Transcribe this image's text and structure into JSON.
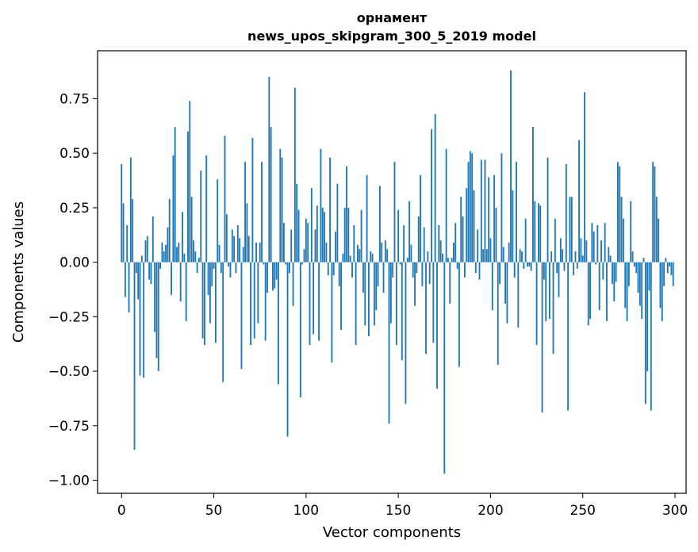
{
  "chart_data": {
    "type": "bar",
    "title": "орнамент",
    "subtitle": "news_upos_skipgram_300_5_2019 model",
    "xlabel": "Vector components",
    "ylabel": "Components values",
    "xlim": [
      -13,
      306
    ],
    "ylim": [
      -1.06,
      0.97
    ],
    "xticks": [
      0,
      50,
      100,
      150,
      200,
      250,
      300
    ],
    "yticks": [
      -1.0,
      -0.75,
      -0.5,
      -0.25,
      0.0,
      0.25,
      0.5,
      0.75
    ],
    "ytick_labels": [
      "−1.00",
      "−0.75",
      "−0.50",
      "−0.25",
      "0.00",
      "0.25",
      "0.50",
      "0.75"
    ],
    "grid": false,
    "bar_color": "#1f77b4",
    "x": "indices 0..299",
    "values": [
      0.45,
      0.27,
      -0.16,
      0.17,
      -0.23,
      0.48,
      0.29,
      -0.86,
      -0.05,
      -0.17,
      -0.52,
      0.03,
      -0.53,
      0.1,
      0.12,
      -0.08,
      -0.1,
      0.21,
      -0.32,
      -0.44,
      -0.5,
      -0.03,
      0.09,
      0.05,
      0.08,
      0.16,
      0.29,
      -0.15,
      0.49,
      0.62,
      0.07,
      0.09,
      -0.18,
      0.23,
      0.04,
      -0.27,
      0.6,
      0.74,
      0.3,
      0.1,
      0.05,
      -0.05,
      0.02,
      0.42,
      -0.35,
      -0.38,
      0.49,
      -0.15,
      -0.28,
      -0.11,
      -0.03,
      -0.37,
      0.38,
      0.08,
      -0.05,
      -0.55,
      0.58,
      0.22,
      -0.02,
      -0.07,
      0.15,
      0.12,
      -0.05,
      0.17,
      0.11,
      -0.49,
      0.07,
      0.46,
      0.27,
      0.12,
      -0.38,
      0.57,
      -0.35,
      0.09,
      -0.28,
      0.09,
      0.46,
      -0.01,
      -0.36,
      -0.14,
      0.85,
      0.62,
      -0.13,
      -0.12,
      -0.08,
      -0.56,
      0.52,
      0.48,
      0.18,
      -0.01,
      -0.8,
      -0.05,
      0.15,
      -0.2,
      0.8,
      0.36,
      0.24,
      -0.62,
      -0.01,
      0.06,
      0.2,
      0.18,
      -0.38,
      0.34,
      -0.33,
      0.15,
      0.26,
      -0.36,
      0.52,
      0.25,
      0.23,
      0.09,
      -0.06,
      0.48,
      -0.46,
      -0.06,
      0.14,
      0.36,
      -0.11,
      -0.31,
      0.04,
      0.25,
      0.44,
      0.25,
      0.03,
      -0.07,
      0.17,
      -0.38,
      0.08,
      0.06,
      0.24,
      -0.14,
      -0.29,
      0.4,
      -0.34,
      0.05,
      0.04,
      -0.29,
      -0.22,
      -0.11,
      0.35,
      0.09,
      -0.14,
      0.1,
      0.06,
      -0.74,
      -0.28,
      -0.07,
      0.46,
      -0.38,
      0.24,
      -0.01,
      -0.45,
      0.17,
      -0.65,
      0.02,
      0.28,
      0.08,
      -0.07,
      -0.2,
      -0.05,
      0.21,
      0.4,
      -0.11,
      0.16,
      -0.42,
      0.05,
      -0.1,
      0.61,
      -0.37,
      0.68,
      -0.58,
      0.17,
      0.1,
      0.04,
      -0.97,
      0.52,
      0.02,
      -0.19,
      0.02,
      0.09,
      0.18,
      -0.03,
      -0.48,
      0.3,
      0.21,
      -0.07,
      0.34,
      0.46,
      0.51,
      0.5,
      0.33,
      -0.05,
      0.15,
      -0.08,
      0.47,
      0.06,
      0.47,
      0.06,
      0.39,
      0.11,
      -0.22,
      0.4,
      0.25,
      -0.47,
      -0.1,
      0.5,
      0.07,
      -0.19,
      -0.28,
      0.09,
      0.88,
      0.33,
      -0.07,
      0.46,
      -0.3,
      0.06,
      0.05,
      -0.03,
      0.2,
      -0.02,
      -0.02,
      -0.04,
      0.62,
      0.28,
      -0.38,
      0.27,
      0.26,
      -0.69,
      -0.08,
      -0.27,
      0.48,
      -0.26,
      0.05,
      -0.42,
      0.2,
      -0.05,
      -0.16,
      0.11,
      0.06,
      -0.04,
      0.45,
      -0.68,
      0.3,
      0.3,
      -0.06,
      0.05,
      -0.03,
      0.56,
      0.11,
      0.03,
      0.78,
      0.1,
      -0.29,
      -0.26,
      0.18,
      0.14,
      -0.01,
      0.17,
      -0.22,
      0.1,
      -0.08,
      0.18,
      -0.27,
      0.07,
      0.03,
      -0.1,
      -0.18,
      -0.09,
      0.46,
      0.44,
      0.3,
      0.2,
      -0.21,
      -0.27,
      -0.11,
      0.28,
      0.05,
      -0.02,
      -0.05,
      -0.14,
      -0.2,
      -0.26,
      0.02,
      -0.65,
      -0.5,
      -0.13,
      -0.68,
      0.46,
      0.44,
      0.3,
      0.2,
      -0.21,
      -0.27,
      -0.11,
      0.02,
      -0.05,
      -0.02,
      -0.06,
      -0.11
    ]
  }
}
